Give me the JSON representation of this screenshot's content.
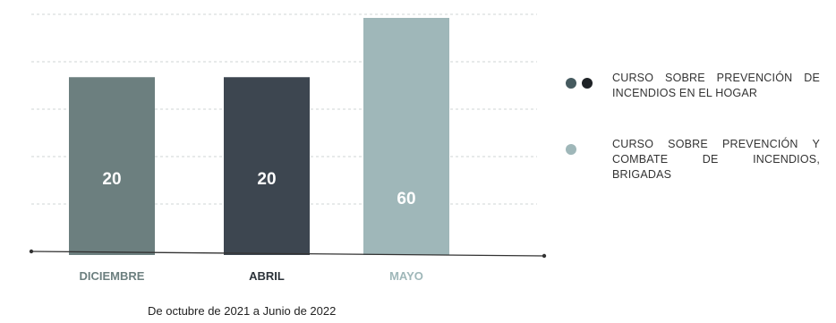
{
  "chart_data": {
    "type": "bar",
    "categories": [
      "DICIEMBRE",
      "ABRIL",
      "MAYO"
    ],
    "values": [
      20,
      20,
      60
    ],
    "bar_colors": [
      "#6c7f7f",
      "#3d4650",
      "#9fb7b9"
    ],
    "category_label_colors": [
      "#6c7f7f",
      "#2c333a",
      "#9fb7b9"
    ],
    "grid": true,
    "legend_position": "right",
    "legend": [
      {
        "label": "CURSO SOBRE PREVENCIÓN DE INCENDIOS EN EL HOGAR",
        "colors": [
          "#455a5f",
          "#1e2226"
        ]
      },
      {
        "label": "CURSO SOBRE PREVENCIÓN Y COMBATE DE INCENDIOS, BRIGADAS",
        "colors": [
          "#9fb7b9"
        ]
      }
    ],
    "footnote": "De octubre de 2021 a Junio de 2022"
  }
}
